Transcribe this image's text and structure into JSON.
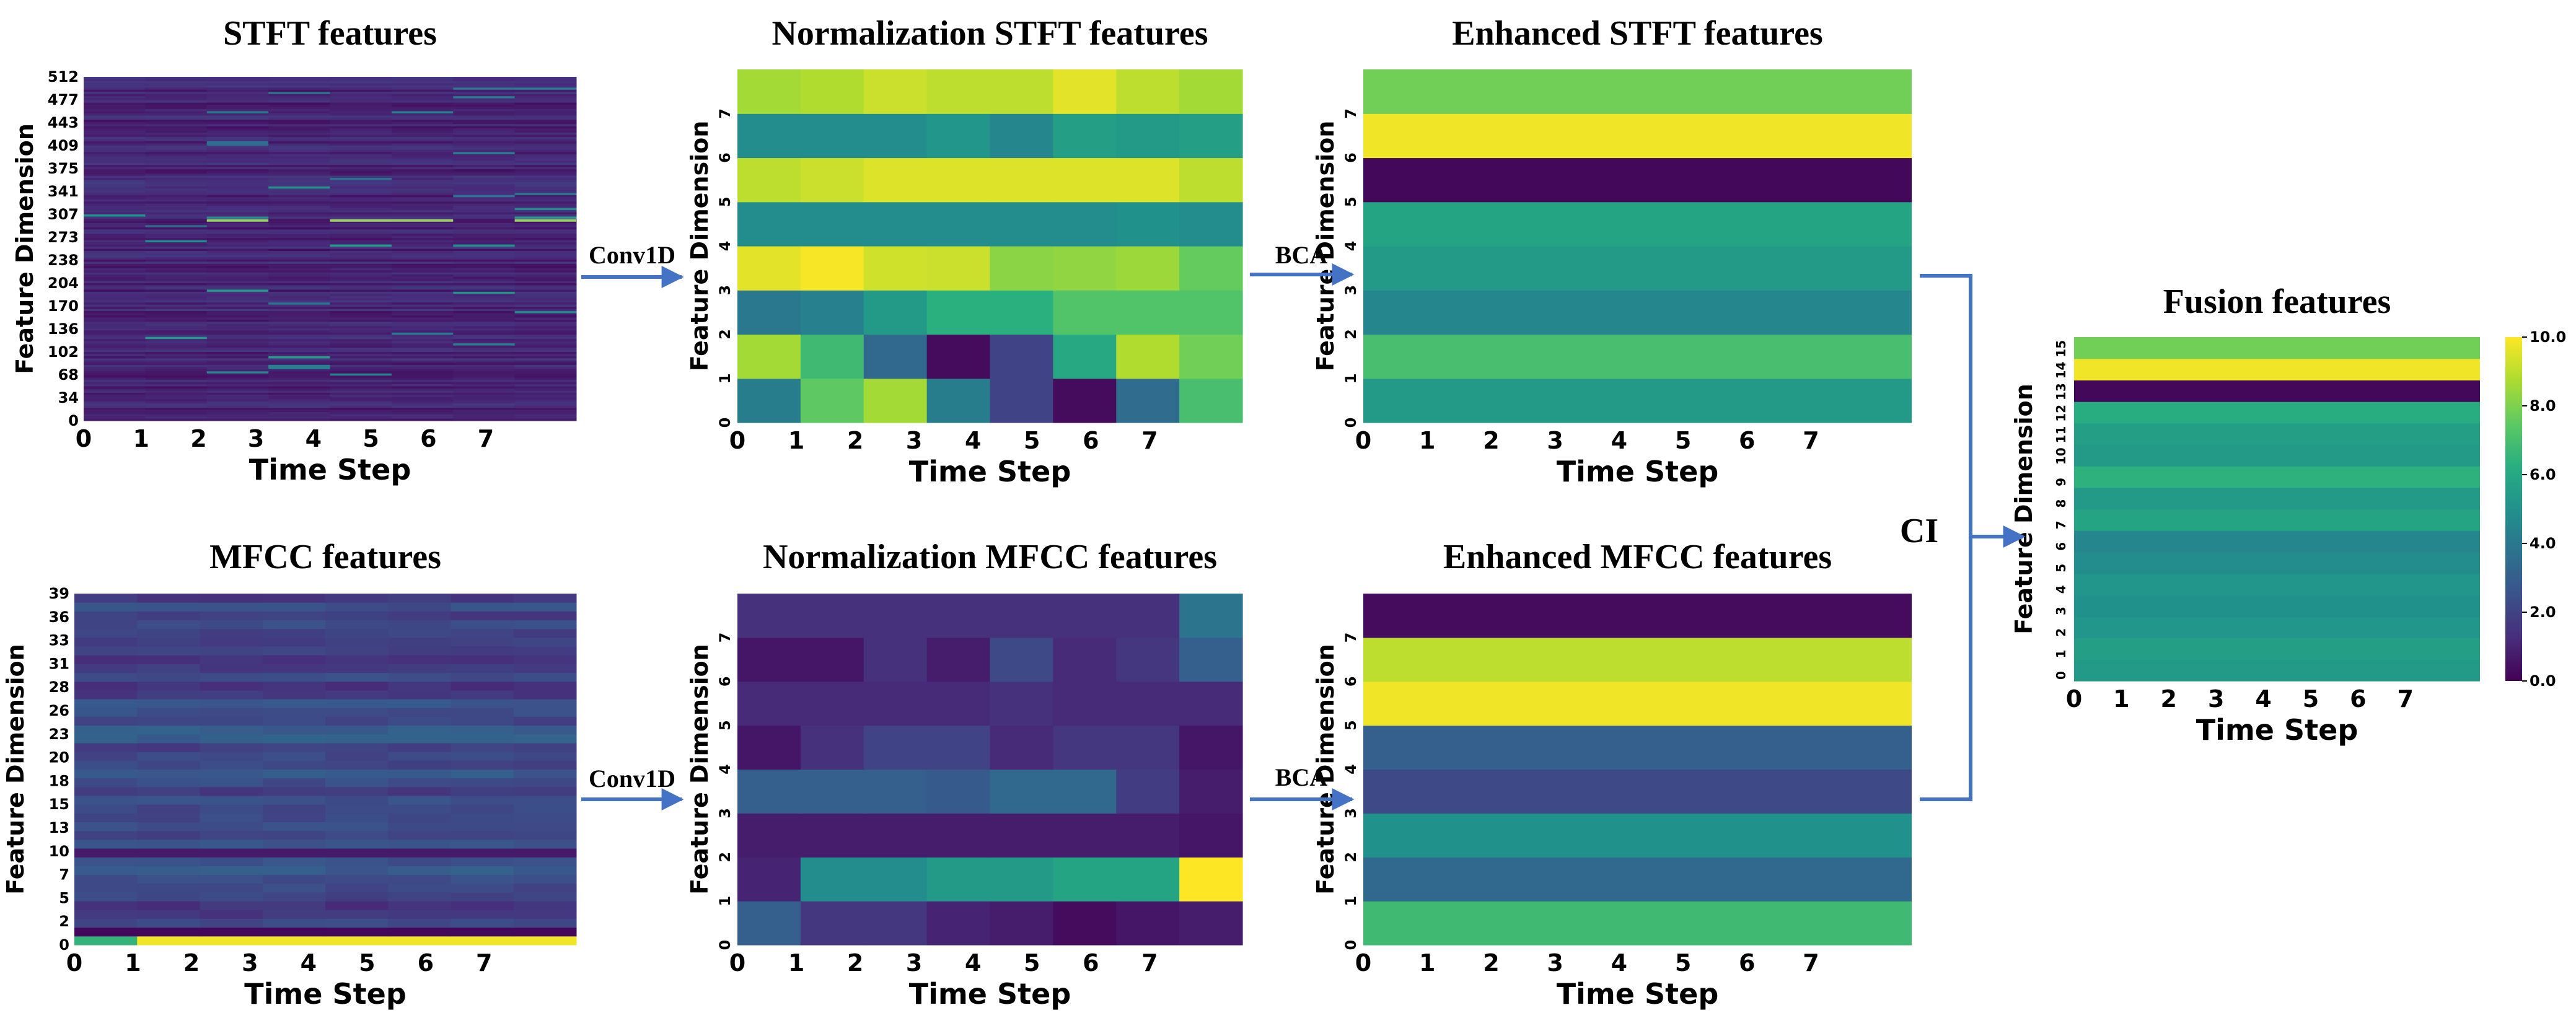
{
  "panels": [
    {
      "id": "stft",
      "title": "STFT features",
      "xlabel": "Time Step",
      "ylabel": "Feature Dimension",
      "xticks": [
        "0",
        "1",
        "2",
        "3",
        "4",
        "5",
        "6",
        "7"
      ],
      "yticks": [
        "0",
        "34",
        "68",
        "102",
        "136",
        "170",
        "204",
        "238",
        "273",
        "307",
        "341",
        "375",
        "409",
        "443",
        "477",
        "512"
      ]
    },
    {
      "id": "norm-stft",
      "title": "Normalization STFT features",
      "xlabel": "Time Step",
      "ylabel": "Feature Dimension",
      "xticks": [
        "0",
        "1",
        "2",
        "3",
        "4",
        "5",
        "6",
        "7"
      ],
      "yticks": [
        "0",
        "1",
        "2",
        "3",
        "4",
        "5",
        "6",
        "7"
      ],
      "matrix": [
        [
          4.2,
          7.5,
          8.6,
          4.2,
          2.0,
          0.3,
          3.5,
          7.0
        ],
        [
          8.6,
          6.8,
          3.4,
          0.3,
          2.0,
          6.0,
          8.8,
          7.8
        ],
        [
          4.0,
          4.3,
          5.4,
          6.3,
          6.3,
          7.2,
          7.2,
          7.2
        ],
        [
          9.6,
          9.9,
          9.3,
          9.2,
          8.2,
          8.3,
          8.5,
          7.6
        ],
        [
          4.8,
          4.8,
          4.8,
          4.8,
          4.8,
          4.8,
          5.0,
          4.8
        ],
        [
          9.0,
          9.2,
          9.5,
          9.5,
          9.5,
          9.5,
          9.5,
          9.0
        ],
        [
          4.8,
          4.8,
          4.8,
          5.2,
          4.6,
          5.6,
          5.4,
          5.6
        ],
        [
          8.6,
          8.8,
          9.2,
          9.0,
          9.0,
          9.6,
          9.0,
          8.6
        ]
      ]
    },
    {
      "id": "enh-stft",
      "title": "Enhanced STFT features",
      "xlabel": "Time Step",
      "ylabel": "Feature Dimension",
      "xticks": [
        "0",
        "1",
        "2",
        "3",
        "4",
        "5",
        "6",
        "7"
      ],
      "yticks": [
        "0",
        "1",
        "2",
        "3",
        "4",
        "5",
        "6",
        "7"
      ],
      "matrix_rows": [
        5.4,
        7.0,
        4.6,
        5.4,
        5.8,
        0.2,
        9.8,
        7.8
      ]
    },
    {
      "id": "mfcc",
      "title": "MFCC features",
      "xlabel": "Time Step",
      "ylabel": "Feature Dimension",
      "xticks": [
        "0",
        "1",
        "2",
        "3",
        "4",
        "5",
        "6",
        "7"
      ],
      "yticks": [
        "0",
        "2",
        "5",
        "7",
        "10",
        "13",
        "15",
        "18",
        "20",
        "23",
        "26",
        "28",
        "31",
        "33",
        "36",
        "39"
      ]
    },
    {
      "id": "norm-mfcc",
      "title": "Normalization MFCC features",
      "xlabel": "Time Step",
      "ylabel": "Feature Dimension",
      "xticks": [
        "0",
        "1",
        "2",
        "3",
        "4",
        "5",
        "6",
        "7"
      ],
      "yticks": [
        "0",
        "1",
        "2",
        "3",
        "4",
        "5",
        "6",
        "7"
      ],
      "matrix": [
        [
          3.0,
          1.6,
          1.6,
          1.0,
          0.8,
          0.3,
          0.6,
          0.8
        ],
        [
          1.0,
          4.8,
          4.8,
          5.4,
          5.4,
          5.8,
          5.8,
          10.0
        ],
        [
          0.8,
          0.8,
          0.8,
          0.8,
          0.8,
          0.8,
          0.8,
          0.6
        ],
        [
          3.0,
          3.0,
          3.0,
          2.8,
          3.4,
          3.4,
          1.8,
          0.8
        ],
        [
          0.6,
          1.4,
          2.0,
          2.0,
          1.2,
          1.6,
          1.6,
          0.6
        ],
        [
          1.2,
          1.2,
          1.2,
          1.2,
          1.4,
          1.2,
          1.2,
          1.2
        ],
        [
          0.6,
          0.6,
          1.4,
          0.8,
          2.2,
          1.2,
          1.6,
          3.0
        ],
        [
          1.4,
          1.4,
          1.4,
          1.4,
          1.4,
          1.4,
          1.4,
          3.8
        ]
      ]
    },
    {
      "id": "enh-mfcc",
      "title": "Enhanced MFCC features",
      "xlabel": "Time Step",
      "ylabel": "Feature Dimension",
      "xticks": [
        "0",
        "1",
        "2",
        "3",
        "4",
        "5",
        "6",
        "7"
      ],
      "yticks": [
        "0",
        "1",
        "2",
        "3",
        "4",
        "5",
        "6",
        "7"
      ],
      "matrix_rows": [
        6.8,
        3.4,
        5.0,
        2.2,
        3.0,
        9.8,
        9.0,
        0.3
      ]
    },
    {
      "id": "fusion",
      "title": "Fusion features",
      "xlabel": "Time Step",
      "ylabel": "Feature Dimension",
      "xticks": [
        "0",
        "1",
        "2",
        "3",
        "4",
        "5",
        "6",
        "7"
      ],
      "yticks": [
        "0",
        "1",
        "2",
        "3",
        "4",
        "5",
        "6",
        "7",
        "8",
        "9",
        "10",
        "11",
        "12",
        "13",
        "14",
        "15"
      ],
      "matrix_rows": [
        5.4,
        5.6,
        5.2,
        5.0,
        5.2,
        4.8,
        4.6,
        5.8,
        5.4,
        6.4,
        5.4,
        5.6,
        6.2,
        0.2,
        9.8,
        7.8
      ]
    }
  ],
  "operations": {
    "conv1d_top": "Conv1D",
    "conv1d_bottom": "Conv1D",
    "bca_top": "BCA",
    "bca_bottom": "BCA",
    "ci": "CI"
  },
  "colorbar": {
    "ticks": [
      "0.0",
      "2.0",
      "4.0",
      "6.0",
      "8.0",
      "10.0"
    ],
    "min": 0,
    "max": 10,
    "colormap": "viridis"
  },
  "colors": {
    "arrow": "#4472c4"
  }
}
